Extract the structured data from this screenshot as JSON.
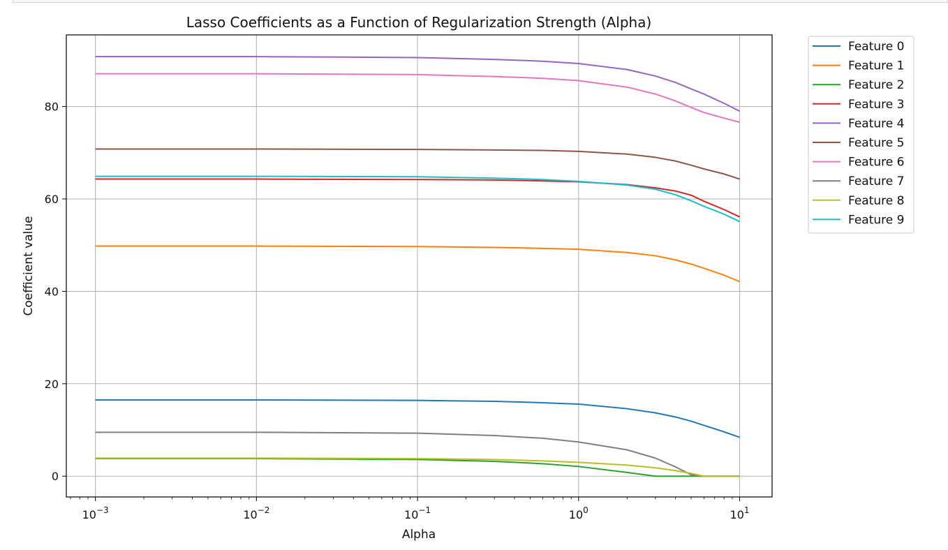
{
  "chart_data": {
    "type": "line",
    "title": "Lasso Coefficients as a Function of Regularization Strength (Alpha)",
    "xlabel": "Alpha",
    "ylabel": "Coefficient value",
    "xscale": "log",
    "xlim": [
      0.00066,
      15.9
    ],
    "ylim": [
      -4.5,
      95.5
    ],
    "xticks": [
      {
        "value": 0.001,
        "base": "10",
        "exp": "−3"
      },
      {
        "value": 0.01,
        "base": "10",
        "exp": "−2"
      },
      {
        "value": 0.1,
        "base": "10",
        "exp": "−1"
      },
      {
        "value": 1,
        "base": "10",
        "exp": "0"
      },
      {
        "value": 10,
        "base": "10",
        "exp": "1"
      }
    ],
    "yticks": [
      0,
      20,
      40,
      60,
      80
    ],
    "grid": true,
    "legend_position": "outside-top-right",
    "x": [
      0.001,
      0.01,
      0.1,
      0.3,
      0.6,
      1,
      2,
      3,
      4,
      5,
      6,
      8,
      10
    ],
    "series": [
      {
        "name": "Feature 0",
        "color": "#1f77b4",
        "values": [
          16.5,
          16.5,
          16.4,
          16.2,
          15.9,
          15.6,
          14.6,
          13.7,
          12.8,
          11.9,
          11.0,
          9.6,
          8.4
        ]
      },
      {
        "name": "Feature 1",
        "color": "#ff7f0e",
        "values": [
          49.8,
          49.8,
          49.7,
          49.5,
          49.3,
          49.1,
          48.4,
          47.7,
          46.8,
          45.9,
          45.0,
          43.5,
          42.1
        ]
      },
      {
        "name": "Feature 2",
        "color": "#2ca02c",
        "values": [
          3.8,
          3.8,
          3.6,
          3.2,
          2.7,
          2.1,
          0.8,
          0.0,
          0.0,
          0.0,
          0.0,
          0.0,
          0.0
        ]
      },
      {
        "name": "Feature 3",
        "color": "#d62728",
        "values": [
          64.3,
          64.3,
          64.2,
          64.1,
          63.9,
          63.7,
          63.1,
          62.4,
          61.7,
          60.8,
          59.5,
          57.7,
          56.1
        ]
      },
      {
        "name": "Feature 4",
        "color": "#9467bd",
        "values": [
          90.8,
          90.8,
          90.6,
          90.2,
          89.8,
          89.3,
          88.0,
          86.6,
          85.2,
          83.8,
          82.7,
          80.7,
          79.0
        ]
      },
      {
        "name": "Feature 5",
        "color": "#8c564b",
        "values": [
          70.8,
          70.8,
          70.7,
          70.6,
          70.5,
          70.3,
          69.7,
          69.0,
          68.2,
          67.3,
          66.5,
          65.4,
          64.3
        ]
      },
      {
        "name": "Feature 6",
        "color": "#e377c2",
        "values": [
          87.1,
          87.1,
          86.9,
          86.5,
          86.1,
          85.6,
          84.2,
          82.7,
          81.2,
          79.8,
          78.7,
          77.5,
          76.6
        ]
      },
      {
        "name": "Feature 7",
        "color": "#7f7f7f",
        "values": [
          9.5,
          9.5,
          9.3,
          8.8,
          8.2,
          7.4,
          5.7,
          3.9,
          2.0,
          0.3,
          0.0,
          0.0,
          0.0
        ]
      },
      {
        "name": "Feature 8",
        "color": "#bcbd22",
        "values": [
          3.9,
          3.9,
          3.8,
          3.6,
          3.3,
          3.0,
          2.4,
          1.8,
          1.2,
          0.6,
          0.0,
          0.0,
          0.0
        ]
      },
      {
        "name": "Feature 9",
        "color": "#17becf",
        "values": [
          64.9,
          64.9,
          64.8,
          64.5,
          64.2,
          63.8,
          63.0,
          62.1,
          60.9,
          59.6,
          58.4,
          56.7,
          55.1
        ]
      }
    ]
  }
}
